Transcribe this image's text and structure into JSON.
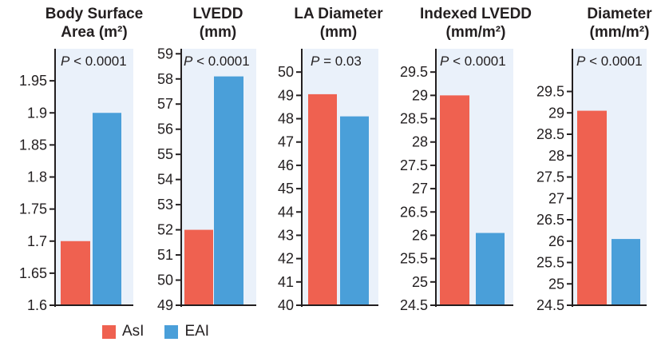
{
  "colors": {
    "AsI": "#ef6150",
    "EAI": "#4a9fd9",
    "panel_bg": "#eaf1fa"
  },
  "legend": {
    "items": [
      {
        "label": "AsI",
        "color": "#ef6150"
      },
      {
        "label": "EAI",
        "color": "#4a9fd9"
      }
    ]
  },
  "chart_data": [
    {
      "type": "bar",
      "title": [
        "Body Surface",
        "Area (m²)"
      ],
      "annotation": "P < 0.0001",
      "categories": [
        "AsI",
        "EAI"
      ],
      "values": [
        1.7,
        1.9
      ],
      "ylim": [
        1.6,
        2.0
      ],
      "ticks": [
        "1.6",
        "1.65",
        "1.7",
        "1.75",
        "1.8",
        "1.85",
        "1.9",
        "1.95"
      ],
      "tick_values": [
        1.6,
        1.65,
        1.7,
        1.75,
        1.8,
        1.85,
        1.9,
        1.95
      ],
      "grid": false
    },
    {
      "type": "bar",
      "title": [
        "LVEDD",
        "(mm)"
      ],
      "annotation": "P < 0.0001",
      "categories": [
        "AsI",
        "EAI"
      ],
      "values": [
        52.0,
        58.1
      ],
      "ylim": [
        49,
        59.2
      ],
      "ticks": [
        "49",
        "50",
        "51",
        "52",
        "53",
        "54",
        "55",
        "56",
        "57",
        "58",
        "59"
      ],
      "tick_values": [
        49,
        50,
        51,
        52,
        53,
        54,
        55,
        56,
        57,
        58,
        59
      ],
      "grid": false
    },
    {
      "type": "bar",
      "title": [
        "LA Diameter",
        "(mm)"
      ],
      "annotation": "P = 0.03",
      "categories": [
        "AsI",
        "EAI"
      ],
      "values": [
        49.05,
        48.1
      ],
      "ylim": [
        40,
        51
      ],
      "ticks": [
        "40",
        "41",
        "42",
        "43",
        "44",
        "45",
        "46",
        "47",
        "48",
        "49",
        "50"
      ],
      "tick_values": [
        40,
        41,
        42,
        43,
        44,
        45,
        46,
        47,
        48,
        49,
        50
      ],
      "grid": false
    },
    {
      "type": "bar",
      "title": [
        "Indexed LVEDD",
        "(mm/m²)"
      ],
      "annotation": "P < 0.0001",
      "categories": [
        "AsI",
        "EAI"
      ],
      "values": [
        29.0,
        26.05
      ],
      "ylim": [
        24.5,
        30.0
      ],
      "ticks": [
        "24.5",
        "25",
        "25.5",
        "26",
        "26.5",
        "27",
        "27.5",
        "28",
        "28.5",
        "29",
        "29.5"
      ],
      "tick_values": [
        24.5,
        25,
        25.5,
        26,
        26.5,
        27,
        27.5,
        28,
        28.5,
        29,
        29.5
      ],
      "grid": false
    },
    {
      "type": "bar",
      "title": [
        "Diameter",
        "(mm/m²)"
      ],
      "annotation": "P < 0.0001",
      "categories": [
        "AsI",
        "EAI"
      ],
      "values": [
        29.05,
        26.05
      ],
      "ylim": [
        24.5,
        30.5
      ],
      "ticks": [
        "24.5",
        "25",
        "25.5",
        "26",
        "26.5",
        "27",
        "27.5",
        "28",
        "28.5",
        "29",
        "29.5"
      ],
      "tick_values": [
        24.5,
        25,
        25.5,
        26,
        26.5,
        27,
        27.5,
        28,
        28.5,
        29,
        29.5
      ],
      "grid": false
    }
  ]
}
